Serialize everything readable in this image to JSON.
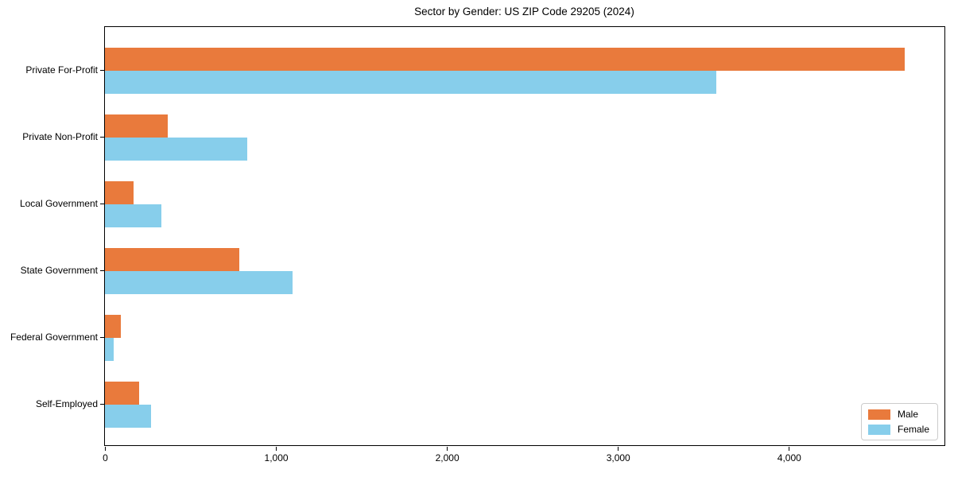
{
  "title": "Sector by Gender: US ZIP Code 29205 (2024)",
  "colors": {
    "male": "#e97a3c",
    "female": "#87ceeb",
    "spine": "#000000",
    "legend_border": "#cccccc",
    "background": "#ffffff"
  },
  "chart_data": {
    "type": "bar",
    "orientation": "horizontal",
    "title": "Sector by Gender: US ZIP Code 29205 (2024)",
    "xlabel": "",
    "ylabel": "",
    "grid": false,
    "legend_position": "lower right",
    "categories": [
      "Private For-Profit",
      "Private Non-Profit",
      "Local Government",
      "State Government",
      "Federal Government",
      "Self-Employed"
    ],
    "series": [
      {
        "name": "Male",
        "color": "#e97a3c",
        "values": [
          4675,
          365,
          165,
          785,
          95,
          200
        ]
      },
      {
        "name": "Female",
        "color": "#87ceeb",
        "values": [
          3575,
          830,
          330,
          1095,
          50,
          270
        ]
      }
    ],
    "xlim": [
      0,
      4910
    ],
    "x_ticks": [
      {
        "value": 0,
        "label": "0"
      },
      {
        "value": 1000,
        "label": "1,000"
      },
      {
        "value": 2000,
        "label": "2,000"
      },
      {
        "value": 3000,
        "label": "3,000"
      },
      {
        "value": 4000,
        "label": "4,000"
      }
    ]
  },
  "legend": {
    "items": [
      {
        "label": "Male"
      },
      {
        "label": "Female"
      }
    ]
  }
}
